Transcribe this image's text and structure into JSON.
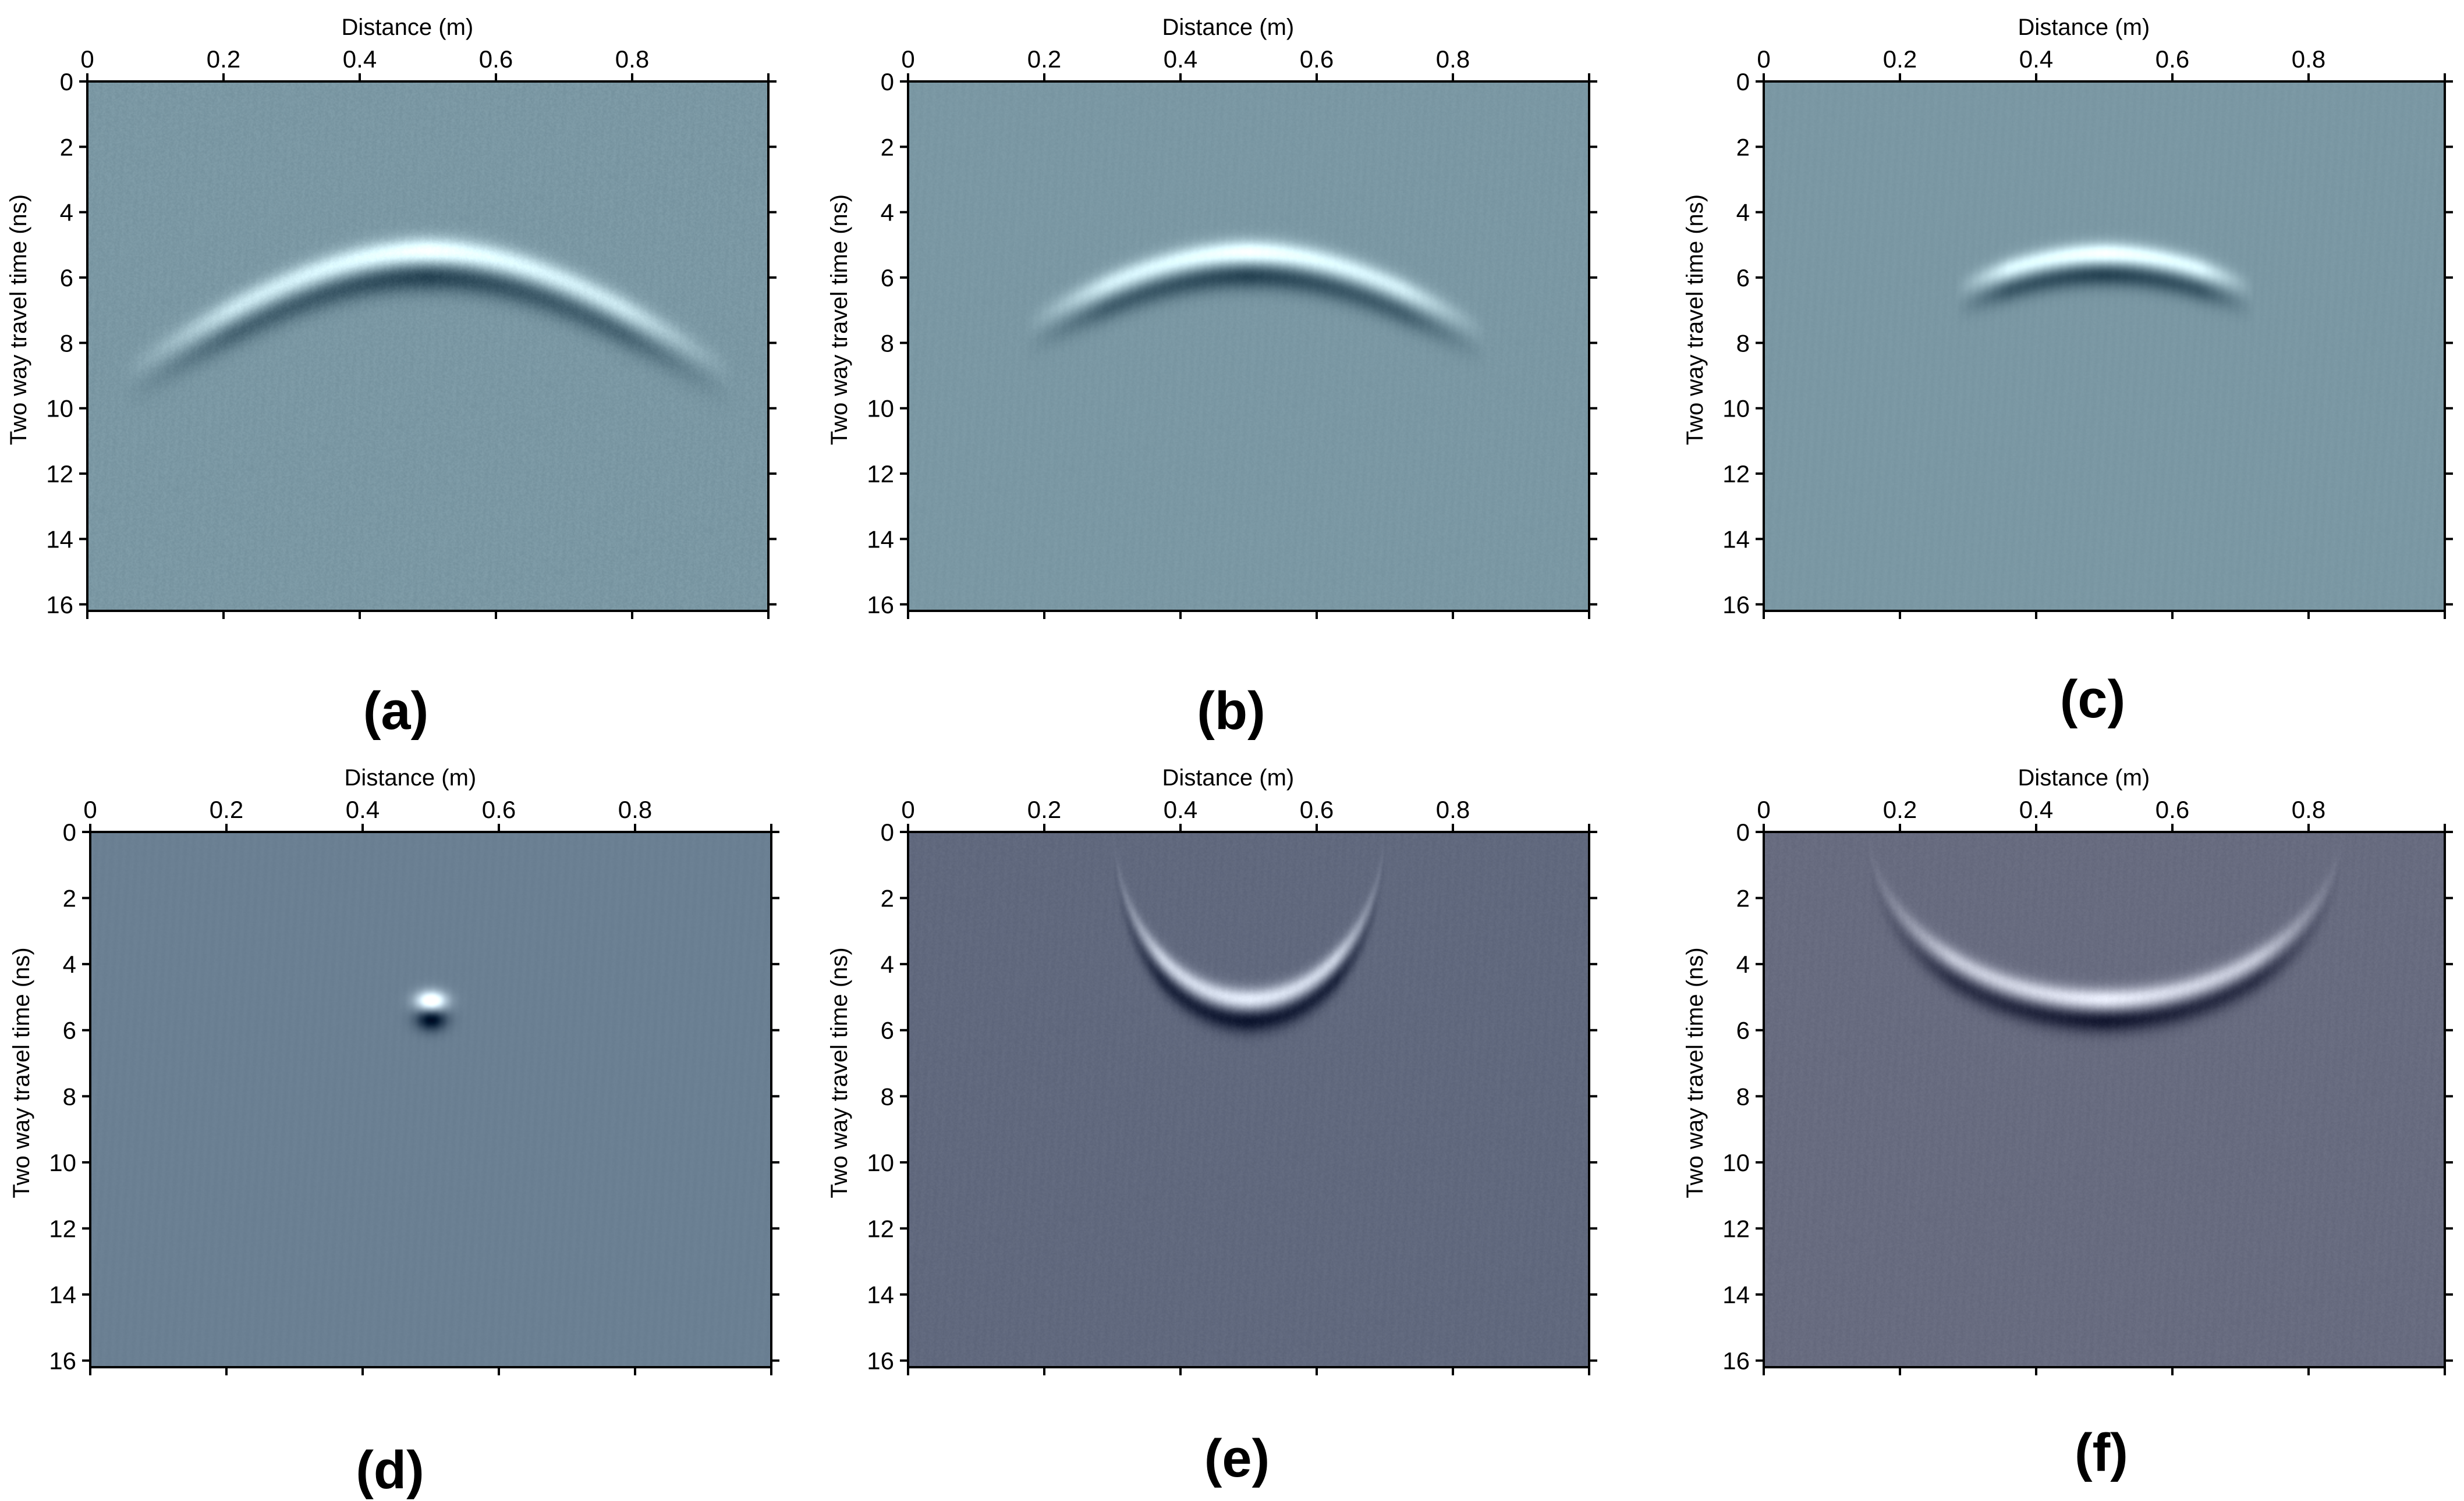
{
  "chart_data": [
    {
      "type": "heatmap",
      "panel_label": "(a)",
      "xlabel": "Distance (m)",
      "ylabel": "Two way travel time (ns)",
      "xlim": [
        0,
        1.0
      ],
      "ylim": [
        16.2,
        0
      ],
      "xticks": [
        "0",
        "0.2",
        "0.4",
        "0.6",
        "0.8"
      ],
      "yticks": [
        "0",
        "2",
        "4",
        "6",
        "8",
        "10",
        "12",
        "14",
        "16"
      ],
      "background_color": "#7b98a4",
      "noise": 0.09,
      "feature": {
        "shape": "hyperbola",
        "apex_x": 0.5,
        "apex_t": 5.6,
        "x_extent": [
          0.05,
          0.95
        ],
        "velocity": 0.12,
        "width": 0.55,
        "strength": 1.0
      }
    },
    {
      "type": "heatmap",
      "panel_label": "(b)",
      "xlabel": "Distance (m)",
      "ylabel": "Two way travel time (ns)",
      "xlim": [
        0,
        1.0
      ],
      "ylim": [
        16.2,
        0
      ],
      "xticks": [
        "0",
        "0.2",
        "0.4",
        "0.6",
        "0.8"
      ],
      "yticks": [
        "0",
        "2",
        "4",
        "6",
        "8",
        "10",
        "12",
        "14",
        "16"
      ],
      "background_color": "#7b98a4",
      "noise": 0.05,
      "feature": {
        "shape": "hyperbola",
        "apex_x": 0.5,
        "apex_t": 5.6,
        "x_extent": [
          0.17,
          0.85
        ],
        "velocity": 0.12,
        "width": 0.5,
        "strength": 1.0
      }
    },
    {
      "type": "heatmap",
      "panel_label": "(c)",
      "xlabel": "Distance (m)",
      "ylabel": "Two way travel time (ns)",
      "xlim": [
        0,
        1.0
      ],
      "ylim": [
        16.2,
        0
      ],
      "xticks": [
        "0",
        "0.2",
        "0.4",
        "0.6",
        "0.8"
      ],
      "yticks": [
        "0",
        "2",
        "4",
        "6",
        "8",
        "10",
        "12",
        "14",
        "16"
      ],
      "background_color": "#7b98a4",
      "noise": 0.03,
      "feature": {
        "shape": "hyperbola",
        "apex_x": 0.5,
        "apex_t": 5.6,
        "x_extent": [
          0.28,
          0.72
        ],
        "velocity": 0.12,
        "width": 0.45,
        "strength": 1.0
      }
    },
    {
      "type": "heatmap",
      "panel_label": "(d)",
      "xlabel": "Distance (m)",
      "ylabel": "Two way travel time (ns)",
      "xlim": [
        0,
        1.0
      ],
      "ylim": [
        16.2,
        0
      ],
      "xticks": [
        "0",
        "0.2",
        "0.4",
        "0.6",
        "0.8"
      ],
      "yticks": [
        "0",
        "2",
        "4",
        "6",
        "8",
        "10",
        "12",
        "14",
        "16"
      ],
      "background_color": "#6b8093",
      "noise": 0.02,
      "feature": {
        "shape": "point",
        "apex_x": 0.5,
        "apex_t": 5.4,
        "x_extent": [
          0.47,
          0.53
        ],
        "velocity": 0.12,
        "width": 0.4,
        "strength": 1.0
      }
    },
    {
      "type": "heatmap",
      "panel_label": "(e)",
      "xlabel": "Distance (m)",
      "ylabel": "Two way travel time (ns)",
      "xlim": [
        0,
        1.0
      ],
      "ylim": [
        16.2,
        0
      ],
      "xticks": [
        "0",
        "0.2",
        "0.4",
        "0.6",
        "0.8"
      ],
      "yticks": [
        "0",
        "2",
        "4",
        "6",
        "8",
        "10",
        "12",
        "14",
        "16"
      ],
      "background_color": "#61697e",
      "noise": 0.06,
      "feature": {
        "shape": "smile",
        "apex_x": 0.5,
        "apex_t": 5.4,
        "x_extent": [
          0.3,
          0.7
        ],
        "velocity": 0.12,
        "width": 0.45,
        "strength": 1.0
      }
    },
    {
      "type": "heatmap",
      "panel_label": "(f)",
      "xlabel": "Distance (m)",
      "ylabel": "Two way travel time (ns)",
      "xlim": [
        0,
        1.0
      ],
      "ylim": [
        16.2,
        0
      ],
      "xticks": [
        "0",
        "0.2",
        "0.4",
        "0.6",
        "0.8"
      ],
      "yticks": [
        "0",
        "2",
        "4",
        "6",
        "8",
        "10",
        "12",
        "14",
        "16"
      ],
      "background_color": "#686c80",
      "noise": 0.06,
      "feature": {
        "shape": "smile",
        "apex_x": 0.5,
        "apex_t": 5.4,
        "x_extent": [
          0.15,
          0.85
        ],
        "velocity": 0.12,
        "width": 0.45,
        "strength": 1.0
      }
    }
  ]
}
